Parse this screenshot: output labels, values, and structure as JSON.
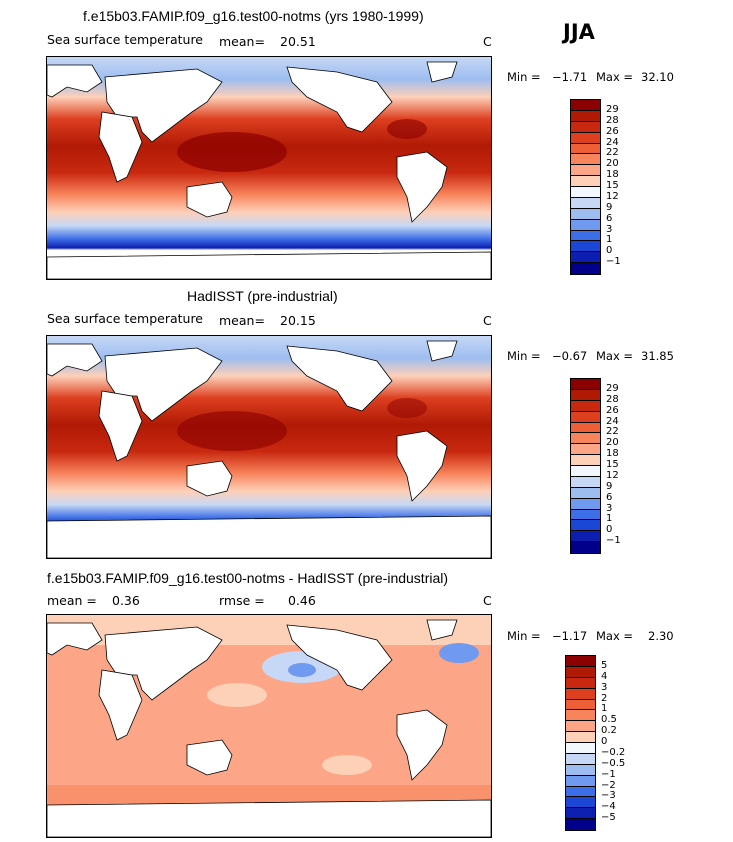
{
  "season": "JJA",
  "panels": [
    {
      "title": "f.e15b03.FAMIP.f09_g16.test00-notms (yrs 1980-1999)",
      "variable": "Sea surface temperature",
      "mean_label": "mean=",
      "mean_value": "20.51",
      "units": "C",
      "min_label": "Min =",
      "min_value": "−1.71",
      "max_label": "Max =",
      "max_value": "32.10",
      "field": "sst"
    },
    {
      "title": "HadISST (pre-industrial)",
      "variable": "Sea surface temperature",
      "mean_label": "mean=",
      "mean_value": "20.15",
      "units": "C",
      "min_label": "Min =",
      "min_value": "−0.67",
      "max_label": "Max =",
      "max_value": "31.85",
      "field": "sst"
    },
    {
      "title": "f.e15b03.FAMIP.f09_g16.test00-notms - HadISST (pre-industrial)",
      "mean_label": "mean =",
      "mean_value": "0.36",
      "rmse_label": "rmse =",
      "rmse_value": "0.46",
      "units": "C",
      "min_label": "Min =",
      "min_value": "−1.17",
      "max_label": "Max =",
      "max_value": "2.30",
      "field": "diff"
    }
  ],
  "colorbars": {
    "sst": {
      "levels": [
        "29",
        "28",
        "26",
        "24",
        "22",
        "20",
        "18",
        "15",
        "12",
        "9",
        "6",
        "3",
        "1",
        "0",
        "−1"
      ],
      "colors": [
        "#8b0000",
        "#b01a05",
        "#c8280f",
        "#dd3f1f",
        "#ee5f38",
        "#f8845c",
        "#fca687",
        "#fdd0b8",
        "#f2f7fd",
        "#c6d8f5",
        "#9dbdf0",
        "#6f9af0",
        "#3c6ee8",
        "#1b46d6",
        "#0d1fb0",
        "#00008b"
      ]
    },
    "diff": {
      "levels": [
        "5",
        "4",
        "3",
        "2",
        "1",
        "0.5",
        "0.2",
        "0",
        "−0.2",
        "−0.5",
        "−1",
        "−2",
        "−3",
        "−4",
        "−5"
      ],
      "colors": [
        "#8b0000",
        "#b01a05",
        "#c8280f",
        "#dd3f1f",
        "#ee5f38",
        "#f8845c",
        "#fca687",
        "#fdd0b8",
        "#f2f7fd",
        "#c6d8f5",
        "#9dbdf0",
        "#6f9af0",
        "#3c6ee8",
        "#1b46d6",
        "#0d1fb0",
        "#00008b"
      ]
    }
  }
}
